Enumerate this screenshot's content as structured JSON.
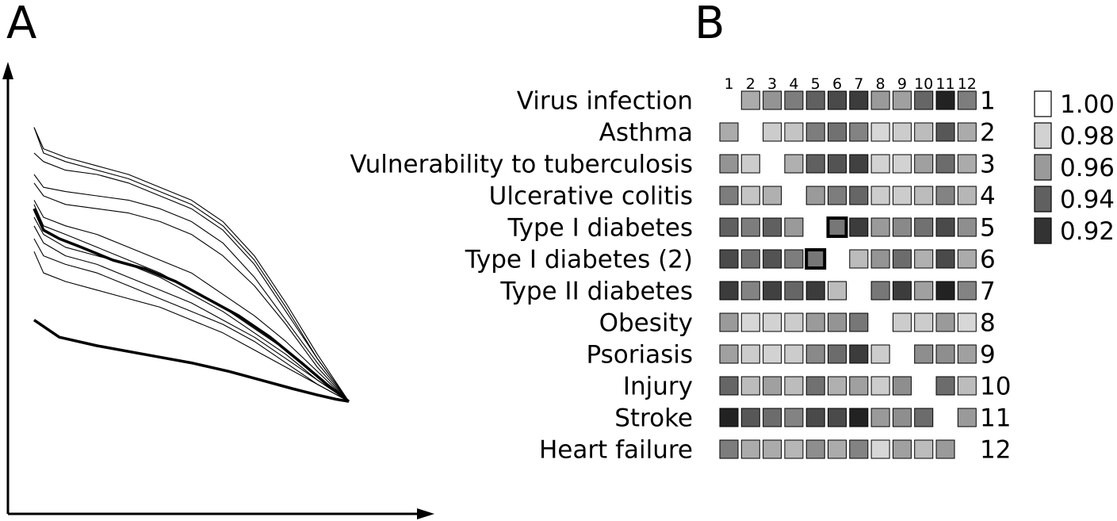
{
  "panels": {
    "a_label": "A",
    "b_label": "B"
  },
  "chart_data": [
    {
      "type": "line",
      "panel": "A",
      "title": "",
      "xlabel": "",
      "ylabel": "",
      "axis_ticks": false,
      "xlim": [
        0,
        1
      ],
      "ylim": [
        0,
        1
      ],
      "series": [
        {
          "width": "thick",
          "x": [
            0.0,
            0.08,
            0.2,
            0.35,
            0.5,
            0.62,
            0.72,
            0.82,
            0.9,
            0.96,
            1.0
          ],
          "y": [
            0.41,
            0.37,
            0.35,
            0.33,
            0.31,
            0.29,
            0.27,
            0.25,
            0.235,
            0.225,
            0.22
          ]
        },
        {
          "width": "thick",
          "x": [
            0.0,
            0.03,
            0.08,
            0.15,
            0.25,
            0.35,
            0.45,
            0.55,
            0.65,
            0.75,
            0.85,
            0.93,
            1.0
          ],
          "y": [
            0.67,
            0.62,
            0.6,
            0.58,
            0.55,
            0.53,
            0.5,
            0.46,
            0.42,
            0.37,
            0.31,
            0.26,
            0.22
          ]
        },
        {
          "width": "thin",
          "x": [
            0.0,
            0.03,
            0.1,
            0.2,
            0.3,
            0.4,
            0.5,
            0.6,
            0.7,
            0.8,
            0.9,
            1.0
          ],
          "y": [
            0.86,
            0.81,
            0.79,
            0.77,
            0.75,
            0.72,
            0.69,
            0.64,
            0.56,
            0.45,
            0.33,
            0.22
          ]
        },
        {
          "width": "thin",
          "x": [
            0.0,
            0.03,
            0.1,
            0.2,
            0.3,
            0.4,
            0.5,
            0.6,
            0.7,
            0.8,
            0.9,
            1.0
          ],
          "y": [
            0.86,
            0.8,
            0.78,
            0.76,
            0.74,
            0.71,
            0.68,
            0.63,
            0.55,
            0.44,
            0.32,
            0.22
          ]
        },
        {
          "width": "thin",
          "x": [
            0.0,
            0.03,
            0.1,
            0.2,
            0.3,
            0.4,
            0.5,
            0.6,
            0.7,
            0.8,
            0.9,
            1.0
          ],
          "y": [
            0.8,
            0.78,
            0.76,
            0.75,
            0.73,
            0.7,
            0.67,
            0.62,
            0.54,
            0.43,
            0.32,
            0.22
          ]
        },
        {
          "width": "thin",
          "x": [
            0.0,
            0.03,
            0.1,
            0.2,
            0.3,
            0.4,
            0.5,
            0.6,
            0.7,
            0.8,
            0.9,
            1.0
          ],
          "y": [
            0.73,
            0.7,
            0.68,
            0.67,
            0.66,
            0.64,
            0.61,
            0.56,
            0.49,
            0.4,
            0.3,
            0.22
          ]
        },
        {
          "width": "thin",
          "x": [
            0.0,
            0.03,
            0.1,
            0.2,
            0.3,
            0.4,
            0.5,
            0.6,
            0.7,
            0.8,
            0.9,
            1.0
          ],
          "y": [
            0.75,
            0.72,
            0.71,
            0.7,
            0.69,
            0.67,
            0.64,
            0.59,
            0.51,
            0.41,
            0.31,
            0.22
          ]
        },
        {
          "width": "thin",
          "x": [
            0.0,
            0.03,
            0.1,
            0.2,
            0.3,
            0.4,
            0.5,
            0.6,
            0.7,
            0.8,
            0.9,
            1.0
          ],
          "y": [
            0.69,
            0.65,
            0.63,
            0.61,
            0.58,
            0.55,
            0.52,
            0.47,
            0.42,
            0.36,
            0.29,
            0.22
          ]
        },
        {
          "width": "thin",
          "x": [
            0.0,
            0.03,
            0.1,
            0.2,
            0.3,
            0.4,
            0.5,
            0.6,
            0.7,
            0.8,
            0.9,
            1.0
          ],
          "y": [
            0.68,
            0.63,
            0.61,
            0.58,
            0.55,
            0.52,
            0.48,
            0.44,
            0.39,
            0.34,
            0.28,
            0.22
          ]
        },
        {
          "width": "thin",
          "x": [
            0.0,
            0.03,
            0.1,
            0.2,
            0.3,
            0.4,
            0.5,
            0.6,
            0.7,
            0.8,
            0.9,
            1.0
          ],
          "y": [
            0.65,
            0.61,
            0.58,
            0.56,
            0.54,
            0.51,
            0.47,
            0.43,
            0.38,
            0.33,
            0.27,
            0.22
          ]
        },
        {
          "width": "thin",
          "x": [
            0.0,
            0.03,
            0.1,
            0.2,
            0.3,
            0.4,
            0.5,
            0.6,
            0.7,
            0.8,
            0.9,
            1.0
          ],
          "y": [
            0.63,
            0.59,
            0.56,
            0.54,
            0.51,
            0.48,
            0.45,
            0.41,
            0.37,
            0.32,
            0.27,
            0.22
          ]
        },
        {
          "width": "thin",
          "x": [
            0.0,
            0.03,
            0.1,
            0.2,
            0.3,
            0.4,
            0.5,
            0.6,
            0.7,
            0.8,
            0.9,
            1.0
          ],
          "y": [
            0.6,
            0.56,
            0.54,
            0.52,
            0.49,
            0.46,
            0.43,
            0.4,
            0.36,
            0.31,
            0.26,
            0.22
          ]
        },
        {
          "width": "thin",
          "x": [
            0.0,
            0.03,
            0.1,
            0.2,
            0.3,
            0.4,
            0.5,
            0.6,
            0.7,
            0.8,
            0.9,
            1.0
          ],
          "y": [
            0.57,
            0.52,
            0.5,
            0.48,
            0.46,
            0.44,
            0.41,
            0.38,
            0.34,
            0.3,
            0.26,
            0.22
          ]
        }
      ]
    },
    {
      "type": "heatmap",
      "panel": "B",
      "title": "",
      "row_labels": [
        "Virus infection",
        "Asthma",
        "Vulnerability to tuberculosis",
        "Ulcerative colitis",
        "Type I diabetes",
        "Type I diabetes (2)",
        "Type II diabetes",
        "Obesity",
        "Psoriasis",
        "Injury",
        "Stroke",
        "Heart failure"
      ],
      "row_numbers": [
        "1",
        "2",
        "3",
        "4",
        "5",
        "6",
        "7",
        "8",
        "9",
        "10",
        "11",
        "12"
      ],
      "col_labels": [
        "1",
        "2",
        "3",
        "4",
        "5",
        "6",
        "7",
        "8",
        "9",
        "10",
        "11",
        "12"
      ],
      "values": [
        [
          null,
          0.966,
          0.958,
          0.95,
          0.94,
          0.93,
          0.924,
          0.96,
          0.962,
          0.942,
          0.905,
          0.95
        ],
        [
          0.966,
          null,
          0.978,
          0.975,
          0.95,
          0.946,
          0.952,
          0.982,
          0.978,
          0.972,
          0.936,
          0.966
        ],
        [
          0.958,
          0.978,
          null,
          0.968,
          0.94,
          0.934,
          0.926,
          0.98,
          0.98,
          0.962,
          0.944,
          0.966
        ],
        [
          0.95,
          0.975,
          0.968,
          null,
          0.96,
          0.95,
          0.942,
          0.978,
          0.978,
          0.972,
          0.952,
          0.97
        ],
        [
          0.94,
          0.95,
          0.94,
          0.96,
          null,
          0.948,
          0.924,
          0.96,
          0.954,
          0.946,
          0.93,
          0.956
        ],
        [
          0.93,
          0.946,
          0.934,
          0.95,
          0.948,
          null,
          0.972,
          0.958,
          0.944,
          0.968,
          0.93,
          0.966
        ],
        [
          0.924,
          0.952,
          0.926,
          0.942,
          0.924,
          0.972,
          null,
          0.948,
          0.924,
          0.962,
          0.905,
          0.952
        ],
        [
          0.96,
          0.982,
          0.98,
          0.978,
          0.96,
          0.958,
          0.948,
          null,
          0.978,
          0.978,
          0.96,
          0.982
        ],
        [
          0.962,
          0.978,
          0.98,
          0.978,
          0.954,
          0.944,
          0.924,
          0.978,
          null,
          0.956,
          0.956,
          0.962
        ],
        [
          0.942,
          0.972,
          0.962,
          0.972,
          0.946,
          0.968,
          0.962,
          0.978,
          0.956,
          null,
          0.944,
          0.972
        ],
        [
          0.905,
          0.936,
          0.944,
          0.952,
          0.93,
          0.93,
          0.905,
          0.96,
          0.956,
          0.944,
          null,
          0.96
        ],
        [
          0.95,
          0.966,
          0.966,
          0.97,
          0.956,
          0.966,
          0.952,
          0.982,
          0.962,
          0.972,
          0.96,
          null
        ]
      ],
      "highlighted_cells": [
        [
          4,
          5
        ],
        [
          5,
          4
        ]
      ],
      "diagonal": "blank",
      "legend": {
        "placement": "right",
        "entries": [
          {
            "label": "1.00",
            "value": 1.0,
            "color": "#ffffff"
          },
          {
            "label": "0.98",
            "value": 0.98,
            "color": "#d2d2d2"
          },
          {
            "label": "0.96",
            "value": 0.96,
            "color": "#9a9a9a"
          },
          {
            "label": "0.94",
            "value": 0.94,
            "color": "#606060"
          },
          {
            "label": "0.92",
            "value": 0.92,
            "color": "#333333"
          }
        ]
      }
    }
  ]
}
